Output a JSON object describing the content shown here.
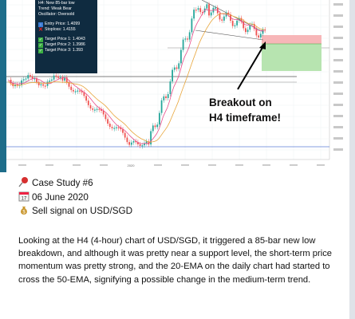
{
  "info_panel": {
    "line1": "H4: New 85-bar low",
    "line2": "Trend: Weak Bear",
    "line3": "Oscillator: Oversold",
    "entry": "Entry Price: 1.4099",
    "stoploss": "Stoploss: 1.4155",
    "target1": "Target Price 1: 1.4043",
    "target2": "Target Price 2: 1.3986",
    "target3": "Target Price 3: 1.393"
  },
  "annotation": {
    "line1": "Breakout on",
    "line2": "H4 timeframe!"
  },
  "case": {
    "title": "Case Study #6",
    "date": "06 June 2020",
    "signal": "Sell signal on USD/SGD",
    "icon_title": "pushpin-icon",
    "icon_date": "calendar-icon",
    "icon_signal": "money-bag-icon"
  },
  "description": "Looking at the H4 (4-hour) chart of USD/SGD, it triggered a 85-bar new low breakdown, and although it was pretty near a support level, the short-term price momentum was pretty strong, and the 20-EMA on the daily chart had started to cross the 50-EMA, signifying a possible change in the medium-term trend.",
  "chart_data": {
    "type": "candlestick",
    "x_tick_labels": [
      "",
      "",
      "",
      "",
      "2020",
      "",
      "",
      "",
      "",
      "",
      "",
      ""
    ],
    "y_tick_labels": [
      "",
      "",
      "",
      "",
      "",
      "",
      "",
      "",
      "",
      "",
      "",
      "",
      "",
      ""
    ],
    "colors": {
      "up": "#26a69a",
      "down": "#ef5350",
      "target_zone": "#b7e4b0",
      "stop_zone": "#f7b6b8",
      "ema_fast": "#e84c8a",
      "ema_slow": "#e8a53a"
    }
  }
}
